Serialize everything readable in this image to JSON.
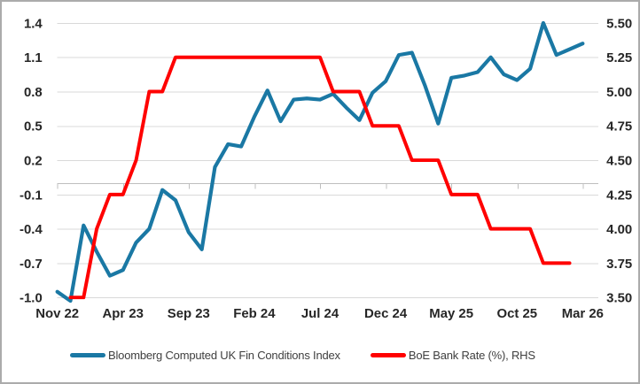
{
  "legend": {
    "series1_label": "Bloomberg Computed UK Fin Conditions Index",
    "series2_label": "BoE Bank Rate (%), RHS"
  },
  "chart_data": {
    "type": "line",
    "title": "",
    "categories": [
      "Nov 22",
      "Dec 22",
      "Jan 23",
      "Feb 23",
      "Mar 23",
      "Apr 23",
      "May 23",
      "Jun 23",
      "Jul 23",
      "Aug 23",
      "Sep 23",
      "Oct 23",
      "Nov 23",
      "Dec 23",
      "Jan 24",
      "Feb 24",
      "Mar 24",
      "Apr 24",
      "May 24",
      "Jun 24",
      "Jul 24",
      "Aug 24",
      "Sep 24",
      "Oct 24",
      "Nov 24",
      "Dec 24",
      "Jan 25",
      "Feb 25",
      "Mar 25",
      "Apr 25",
      "May 25",
      "Jun 25",
      "Jul 25",
      "Aug 25",
      "Sep 25",
      "Oct 25",
      "Nov 25",
      "Dec 25",
      "Jan 26",
      "Feb 26",
      "Mar 26"
    ],
    "x_tick_labels": [
      "Nov 22",
      "Apr 23",
      "Sep 23",
      "Feb 24",
      "Jul 24",
      "Dec 24",
      "May 25",
      "Oct 25",
      "Mar 26"
    ],
    "x_tick_every": 5,
    "grid": true,
    "legend_position": "bottom",
    "left_axis": {
      "ticks": [
        "1.4",
        "1.1",
        "0.8",
        "0.5",
        "0.2",
        "-0.1",
        "-0.4",
        "-0.7",
        "-1.0"
      ],
      "min": -1.0,
      "max": 1.4
    },
    "right_axis": {
      "ticks": [
        "5.50",
        "5.25",
        "5.00",
        "4.75",
        "4.50",
        "4.25",
        "4.00",
        "3.75",
        "3.50"
      ],
      "min": 3.5,
      "max": 5.5
    },
    "series": [
      {
        "name": "Bloomberg Computed UK Fin Conditions Index",
        "axis": "left",
        "color": "#1A78A4",
        "start_index": 0,
        "values": [
          -0.95,
          -1.03,
          -0.37,
          -0.6,
          -0.81,
          -0.76,
          -0.52,
          -0.4,
          -0.06,
          -0.15,
          -0.43,
          -0.58,
          0.14,
          0.34,
          0.32,
          0.58,
          0.81,
          0.54,
          0.73,
          0.74,
          0.73,
          0.78,
          0.66,
          0.55,
          0.79,
          0.89,
          1.12,
          1.14,
          0.85,
          0.52,
          0.92,
          0.94,
          0.97,
          1.1,
          0.95,
          0.9,
          1.0,
          1.4,
          1.12,
          1.17,
          1.22
        ]
      },
      {
        "name": "BoE Bank Rate (%), RHS",
        "axis": "right",
        "color": "#FF0000",
        "start_index": 1,
        "values": [
          3.5,
          3.5,
          4.0,
          4.25,
          4.25,
          4.5,
          5.0,
          5.0,
          5.25,
          5.25,
          5.25,
          5.25,
          5.25,
          5.25,
          5.25,
          5.25,
          5.25,
          5.25,
          5.25,
          5.25,
          5.0,
          5.0,
          5.0,
          4.75,
          4.75,
          4.75,
          4.5,
          4.5,
          4.5,
          4.25,
          4.25,
          4.25,
          4.0,
          4.0,
          4.0,
          4.0,
          3.75,
          3.75,
          3.75
        ]
      }
    ],
    "colors": {
      "grid": "#D9D9D9",
      "zero_axis": "#BFBFBF",
      "tick_text": "#262626",
      "legend_text": "#3F3F3F",
      "frame_border": "#ABABAB",
      "background": "#FFFFFF"
    }
  }
}
